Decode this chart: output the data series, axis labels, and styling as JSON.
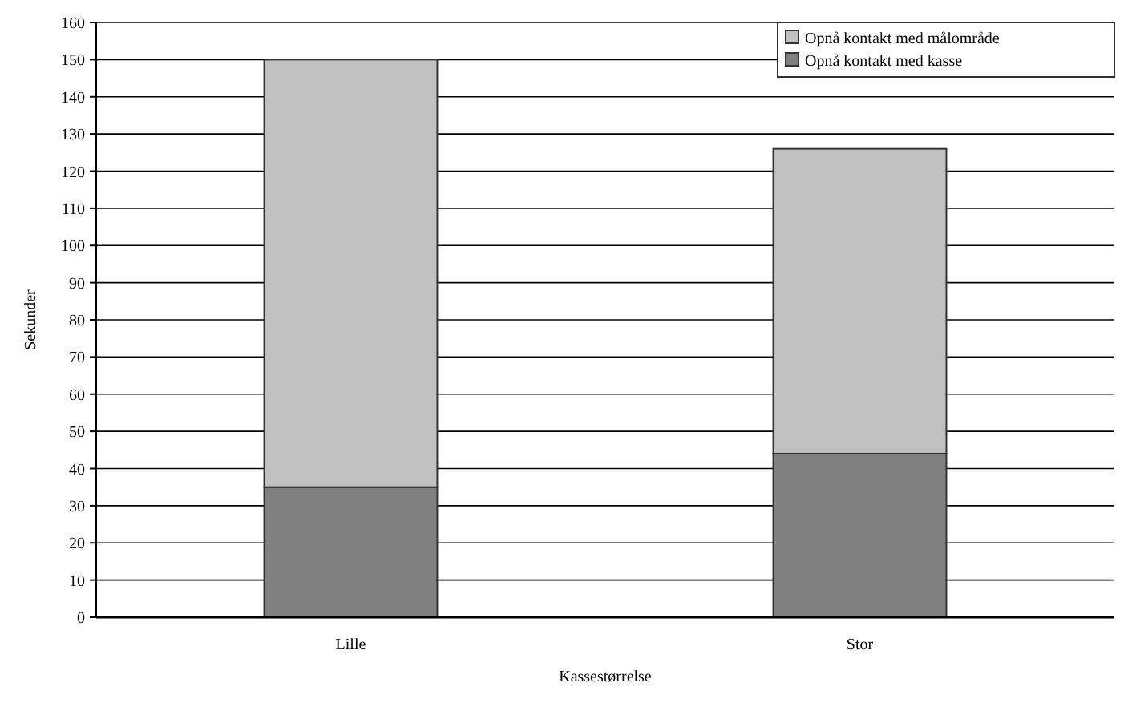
{
  "chart_data": {
    "type": "bar",
    "stacked": true,
    "xlabel": "Kassestørrelse",
    "ylabel": "Sekunder",
    "categories": [
      "Lille",
      "Stor"
    ],
    "series": [
      {
        "name": "Opnå kontakt med kasse",
        "color": "#808080",
        "values": [
          35,
          44
        ]
      },
      {
        "name": "Opnå kontakt med målområde",
        "color": "#c0c0c0",
        "values": [
          115,
          82
        ]
      }
    ],
    "ylim": [
      0,
      160
    ],
    "yticks": [
      0,
      10,
      20,
      30,
      40,
      50,
      60,
      70,
      80,
      90,
      100,
      110,
      120,
      130,
      140,
      150,
      160
    ],
    "grid": "y",
    "legend": "top right"
  }
}
